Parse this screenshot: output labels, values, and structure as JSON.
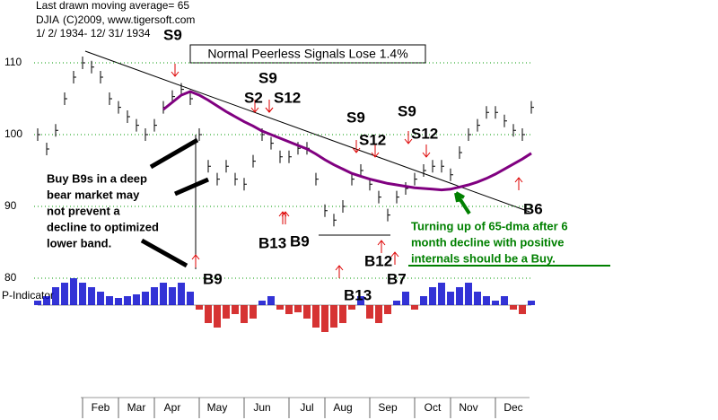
{
  "chart_data": {
    "type": "line",
    "title": "Normal Peerless Signals Lose 1.4%",
    "subtitle": "Last drawn moving average= 65",
    "symbol": "DJIA",
    "copyright": "(C)2009, www.tigersoft.com",
    "date_range": "1/ 2/ 1934- 12/ 31/ 1934",
    "indicator_label": "P-Indicator",
    "categories": [
      null,
      null,
      null,
      null,
      null,
      null,
      null,
      "Feb",
      null,
      null,
      null,
      "Mar",
      null,
      null,
      null,
      "Apr",
      null,
      null,
      null,
      null,
      "May",
      null,
      null,
      null,
      null,
      "Jun",
      null,
      null,
      null,
      null,
      "Jul",
      null,
      null,
      null,
      "Aug",
      null,
      null,
      null,
      null,
      "Sep",
      null,
      null,
      null,
      null,
      "Oct",
      null,
      null,
      null,
      "Nov",
      null,
      null,
      null,
      null,
      "Dec",
      null,
      null
    ],
    "series": [
      {
        "color": "#000000",
        "values": [
          100,
          98,
          100.6,
          105,
          108,
          110,
          109.4,
          108,
          105,
          103.8,
          102.5,
          101.3,
          100,
          101.3,
          103.8,
          105.3,
          106.3,
          105,
          100,
          95.6,
          93.8,
          95.6,
          93.8,
          93.1,
          96.3,
          100,
          98.8,
          96.9,
          96.9,
          98.1,
          98.1,
          93.8,
          89.4,
          88.1,
          90,
          93.8,
          95,
          93.1,
          91.3,
          88.8,
          91.3,
          92.5,
          93.8,
          95,
          95.6,
          95.6,
          94.4,
          97.5,
          100,
          101.3,
          103.1,
          103.1,
          101.9,
          100.6,
          100,
          103.8
        ]
      },
      {
        "color": "#800080",
        "values": [
          null,
          null,
          null,
          null,
          null,
          null,
          null,
          null,
          null,
          null,
          null,
          null,
          null,
          null,
          103.5,
          104.5,
          105.5,
          106,
          105.5,
          104.8,
          104,
          103.2,
          102.5,
          101.8,
          101.2,
          100.5,
          100,
          99.5,
          99,
          98.5,
          98,
          97.3,
          96.5,
          95.8,
          95.2,
          94.6,
          94.2,
          93.8,
          93.5,
          93.2,
          93,
          92.8,
          92.6,
          92.5,
          92.4,
          92.3,
          92.4,
          92.7,
          93,
          93.4,
          93.9,
          94.5,
          95.2,
          95.9,
          96.6,
          97.4
        ]
      }
    ],
    "p_indicator": {
      "positive_color": "#0000cc",
      "negative_color": "#cc0000",
      "values": [
        5,
        10,
        20,
        25,
        30,
        25,
        20,
        15,
        10,
        8,
        10,
        12,
        15,
        20,
        25,
        20,
        25,
        15,
        -5,
        -20,
        -25,
        -15,
        -10,
        -20,
        -15,
        5,
        10,
        -5,
        -10,
        -8,
        -15,
        -25,
        -30,
        -25,
        -20,
        -5,
        10,
        -15,
        -20,
        -10,
        5,
        15,
        -5,
        10,
        20,
        25,
        15,
        20,
        25,
        15,
        10,
        5,
        10,
        -5,
        -10,
        5
      ]
    },
    "ylim": [
      77.5,
      113.75
    ],
    "yticks": [
      80,
      90,
      100,
      110
    ],
    "grid": true,
    "signals": [
      "S9",
      "S9",
      "S2",
      "S12",
      "S9",
      "S9",
      "S12",
      "S12",
      "B9",
      "B13",
      "B9",
      "B12",
      "B13",
      "B7",
      "B6"
    ],
    "annotations": [
      [
        "Buy B9s in a deep",
        "bear market  may",
        "not prevent a",
        "decline to optimized",
        "lower band."
      ],
      [
        "Turning up of 65-dma after 6",
        "month decline with positive",
        "internals should be a Buy."
      ]
    ]
  }
}
